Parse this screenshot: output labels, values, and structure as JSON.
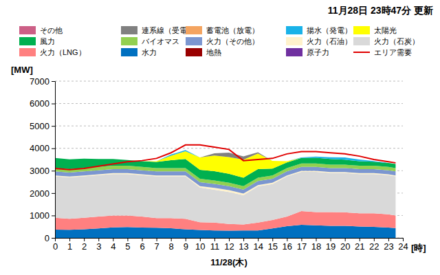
{
  "chart_data": {
    "type": "area",
    "stacked": true,
    "title": "11月28日 23時47分 更新",
    "xlabel": "11/28(木)",
    "ylabel": "[MW]",
    "annotations": [
      "[時]"
    ],
    "grid": true,
    "legend": "top",
    "x": [
      0,
      1,
      2,
      3,
      4,
      5,
      6,
      7,
      8,
      9,
      10,
      11,
      12,
      13,
      14,
      15,
      16,
      17,
      18,
      19,
      20,
      21,
      22,
      23,
      23.5
    ],
    "xlim": [
      0,
      24
    ],
    "xticks": [
      0,
      1,
      2,
      3,
      4,
      5,
      6,
      7,
      8,
      9,
      10,
      11,
      12,
      13,
      14,
      15,
      16,
      17,
      18,
      19,
      20,
      21,
      22,
      23,
      24
    ],
    "ylim": [
      0,
      7000
    ],
    "yticks": [
      0,
      1000,
      2000,
      3000,
      4000,
      5000,
      6000,
      7000
    ],
    "series": [
      {
        "name": "原子力",
        "color": "#7030a0",
        "values": [
          0,
          0,
          0,
          0,
          0,
          0,
          0,
          0,
          0,
          0,
          0,
          0,
          0,
          0,
          0,
          0,
          0,
          0,
          0,
          0,
          0,
          0,
          0,
          0,
          0
        ]
      },
      {
        "name": "地熱",
        "color": "#990000",
        "values": [
          0,
          0,
          0,
          0,
          0,
          0,
          0,
          0,
          0,
          0,
          0,
          0,
          0,
          0,
          0,
          0,
          0,
          0,
          0,
          0,
          0,
          0,
          0,
          0,
          0
        ]
      },
      {
        "name": "水力",
        "color": "#0070c0",
        "values": [
          370,
          360,
          380,
          420,
          470,
          480,
          460,
          450,
          430,
          380,
          350,
          330,
          320,
          330,
          330,
          420,
          520,
          580,
          560,
          540,
          540,
          510,
          490,
          460,
          440
        ]
      },
      {
        "name": "火力（LNG）",
        "color": "#ff8080",
        "values": [
          530,
          490,
          520,
          530,
          530,
          520,
          490,
          430,
          450,
          470,
          350,
          350,
          300,
          270,
          350,
          380,
          430,
          620,
          590,
          610,
          600,
          590,
          610,
          590,
          560
        ]
      },
      {
        "name": "火力（石炭）",
        "color": "#d9d9d9",
        "values": [
          1850,
          1850,
          1850,
          1850,
          1850,
          1850,
          1850,
          1870,
          1870,
          1900,
          1550,
          1470,
          1430,
          1300,
          1620,
          1600,
          1800,
          1750,
          1800,
          1750,
          1760,
          1750,
          1750,
          1750,
          1750
        ]
      },
      {
        "name": "火力（石油）",
        "color": "#fff2cc",
        "values": [
          40,
          40,
          40,
          40,
          40,
          40,
          40,
          40,
          40,
          40,
          60,
          80,
          80,
          80,
          60,
          60,
          40,
          40,
          40,
          40,
          40,
          40,
          40,
          40,
          40
        ]
      },
      {
        "name": "火力（その他）",
        "color": "#7b96d0",
        "values": [
          180,
          180,
          180,
          180,
          180,
          180,
          180,
          180,
          180,
          180,
          180,
          180,
          180,
          180,
          180,
          180,
          180,
          180,
          180,
          180,
          180,
          180,
          180,
          180,
          180
        ]
      },
      {
        "name": "バイオマス",
        "color": "#92d050",
        "values": [
          150,
          150,
          150,
          150,
          150,
          150,
          150,
          150,
          150,
          150,
          150,
          150,
          150,
          150,
          150,
          150,
          150,
          150,
          150,
          150,
          150,
          150,
          150,
          150,
          150
        ]
      },
      {
        "name": "風力",
        "color": "#00b050",
        "values": [
          450,
          440,
          420,
          350,
          300,
          260,
          250,
          270,
          350,
          400,
          400,
          420,
          400,
          380,
          380,
          300,
          250,
          250,
          260,
          250,
          220,
          200,
          180,
          180,
          180
        ]
      },
      {
        "name": "太陽光",
        "color": "#ffff00",
        "values": [
          0,
          0,
          0,
          0,
          0,
          0,
          0,
          30,
          200,
          350,
          550,
          700,
          750,
          800,
          700,
          350,
          50,
          0,
          0,
          0,
          0,
          0,
          0,
          0,
          0
        ]
      },
      {
        "name": "揚水（発電）",
        "color": "#1ab2e8",
        "values": [
          0,
          0,
          0,
          0,
          0,
          0,
          0,
          0,
          50,
          50,
          0,
          0,
          0,
          0,
          0,
          0,
          0,
          20,
          50,
          80,
          100,
          80,
          30,
          0,
          0
        ]
      },
      {
        "name": "蓄電池（放電）",
        "color": "#f4a460",
        "values": [
          0,
          0,
          0,
          0,
          0,
          0,
          0,
          0,
          0,
          0,
          0,
          0,
          0,
          0,
          0,
          0,
          0,
          0,
          0,
          0,
          0,
          0,
          0,
          0,
          0
        ]
      },
      {
        "name": "連系線（受電）",
        "color": "#808080",
        "values": [
          0,
          0,
          0,
          0,
          0,
          0,
          0,
          0,
          0,
          0,
          0,
          100,
          200,
          150,
          50,
          0,
          0,
          0,
          0,
          0,
          0,
          0,
          0,
          0,
          0
        ]
      },
      {
        "name": "その他",
        "color": "#cc5f86",
        "values": [
          0,
          0,
          0,
          0,
          0,
          0,
          0,
          0,
          0,
          0,
          0,
          0,
          0,
          0,
          0,
          0,
          0,
          0,
          0,
          0,
          0,
          0,
          0,
          0,
          0
        ]
      },
      {
        "name": "エリア需要",
        "color": "#e00000",
        "type": "line",
        "values": [
          3100,
          3050,
          3100,
          3200,
          3300,
          3400,
          3450,
          3550,
          3800,
          4150,
          4150,
          4050,
          3950,
          3450,
          3500,
          3550,
          3750,
          3850,
          3850,
          3800,
          3750,
          3650,
          3500,
          3400,
          3350
        ]
      }
    ]
  }
}
